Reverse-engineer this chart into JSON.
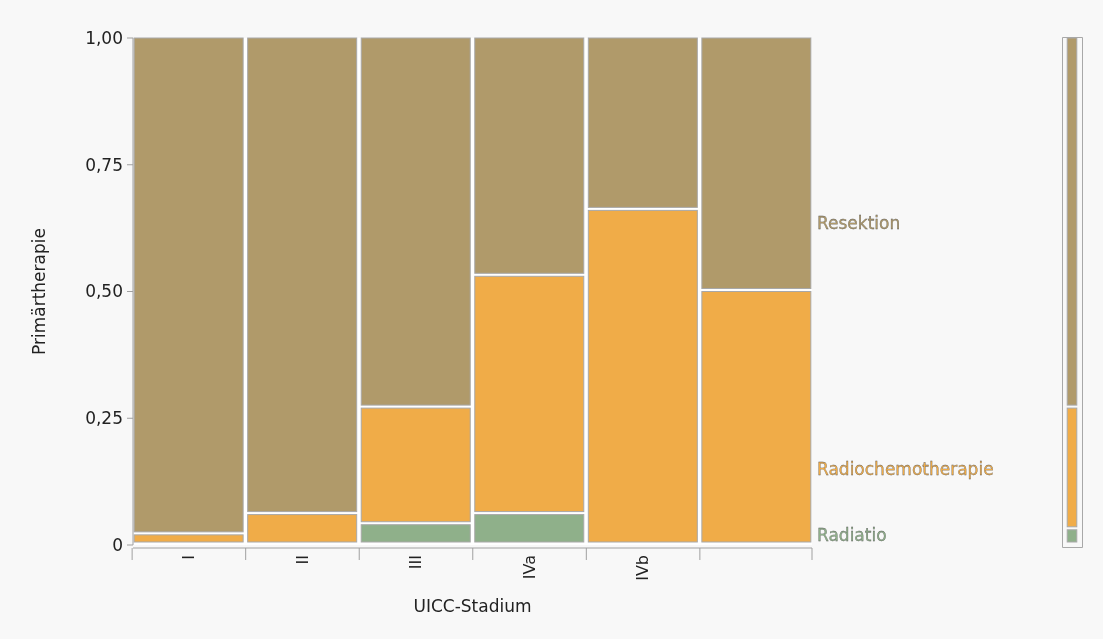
{
  "chart_data": [
    {
      "type": "bar",
      "stacked": true,
      "xlabel": "UICC-Stadium",
      "ylabel": "Primärtherapie",
      "categories": [
        "I",
        "II",
        "III",
        "IVa",
        "IVb",
        null
      ],
      "ylim": [
        0,
        1
      ],
      "yticks": [
        {
          "value": 0,
          "label": "0"
        },
        {
          "value": 0.25,
          "label": "0,25"
        },
        {
          "value": 0.5,
          "label": "0,50"
        },
        {
          "value": 0.75,
          "label": "0,75"
        },
        {
          "value": 1,
          "label": "1,00"
        }
      ],
      "grid": false,
      "legend": false,
      "series": [
        {
          "name": "Radiatio",
          "color": "#8fb08a",
          "values": [
            0,
            0,
            0.04,
            0.06,
            0,
            0
          ]
        },
        {
          "name": "Radiochemotherapie",
          "color": "#f0ac48",
          "values": [
            0.02,
            0.06,
            0.23,
            0.47,
            0.66,
            0.5
          ]
        },
        {
          "name": "Resektion",
          "color": "#b09a6a",
          "values": [
            0.98,
            0.94,
            0.73,
            0.47,
            0.34,
            0.5
          ]
        }
      ]
    },
    {
      "type": "bar",
      "stacked": true,
      "ylim": [
        0,
        1
      ],
      "tick_labels": false,
      "categories": [
        null
      ],
      "legend": false,
      "series": [
        {
          "color": "#8fb08a",
          "values": [
            0.03
          ]
        },
        {
          "color": "#f0ac48",
          "values": [
            0.24
          ]
        },
        {
          "color": "#b09a6a",
          "values": [
            0.73
          ]
        }
      ]
    }
  ]
}
